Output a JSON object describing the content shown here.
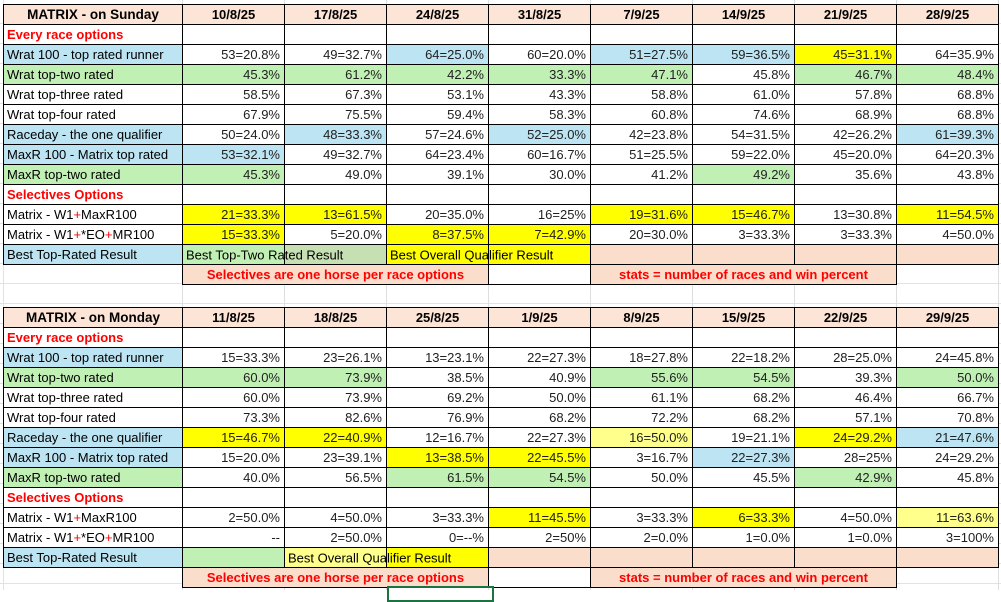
{
  "colors": {
    "salmon_header": "#FCE4D6",
    "salmon_band": "#FADDCB",
    "red_text": "#FF0000",
    "selection_border": "#1B7340",
    "grid_line": "#E0E0E0",
    "cell_bg": {
      "w": "#FFFFFF",
      "b": "#BDE4F2",
      "g": "#C1F0B4",
      "g2": "#C6E0B4",
      "y": "#FFFF00",
      "p": "#FFFF8C",
      "s": "#FADDCB"
    }
  },
  "tables": [
    {
      "title": "MATRIX - on Sunday",
      "dates": [
        "10/8/25",
        "17/8/25",
        "24/8/25",
        "31/8/25",
        "7/9/25",
        "14/9/25",
        "21/9/25",
        "28/9/25"
      ],
      "rows": [
        {
          "type": "section",
          "label": "Every race options"
        },
        {
          "type": "data",
          "label": "Wrat 100 - top rated runner",
          "label_bg": "b",
          "cells": [
            [
              "53=20.8%",
              "w"
            ],
            [
              "49=32.7%",
              "w"
            ],
            [
              "64=25.0%",
              "b"
            ],
            [
              "60=20.0%",
              "w"
            ],
            [
              "51=27.5%",
              "b"
            ],
            [
              "59=36.5%",
              "b"
            ],
            [
              "45=31.1%",
              "y"
            ],
            [
              "64=35.9%",
              "w"
            ]
          ]
        },
        {
          "type": "data",
          "label": "Wrat top-two rated",
          "label_bg": "g",
          "cells": [
            [
              "45.3%",
              "g"
            ],
            [
              "61.2%",
              "g"
            ],
            [
              "42.2%",
              "g"
            ],
            [
              "33.3%",
              "g"
            ],
            [
              "47.1%",
              "g"
            ],
            [
              "45.8%",
              "w"
            ],
            [
              "46.7%",
              "g"
            ],
            [
              "48.4%",
              "g"
            ]
          ]
        },
        {
          "type": "data",
          "label": "Wrat top-three rated",
          "label_bg": "w",
          "cells": [
            [
              "58.5%",
              "w"
            ],
            [
              "67.3%",
              "w"
            ],
            [
              "53.1%",
              "w"
            ],
            [
              "43.3%",
              "w"
            ],
            [
              "58.8%",
              "w"
            ],
            [
              "61.0%",
              "w"
            ],
            [
              "57.8%",
              "w"
            ],
            [
              "68.8%",
              "w"
            ]
          ]
        },
        {
          "type": "data",
          "label": "Wrat top-four rated",
          "label_bg": "w",
          "cells": [
            [
              "67.9%",
              "w"
            ],
            [
              "75.5%",
              "w"
            ],
            [
              "59.4%",
              "w"
            ],
            [
              "58.3%",
              "w"
            ],
            [
              "60.8%",
              "w"
            ],
            [
              "74.6%",
              "w"
            ],
            [
              "68.9%",
              "w"
            ],
            [
              "68.8%",
              "w"
            ]
          ]
        },
        {
          "type": "data",
          "label": "Raceday - the one qualifier",
          "label_bg": "b",
          "cells": [
            [
              "50=24.0%",
              "w"
            ],
            [
              "48=33.3%",
              "b"
            ],
            [
              "57=24.6%",
              "w"
            ],
            [
              "52=25.0%",
              "b"
            ],
            [
              "42=23.8%",
              "w"
            ],
            [
              "54=31.5%",
              "w"
            ],
            [
              "42=26.2%",
              "w"
            ],
            [
              "61=39.3%",
              "b"
            ]
          ]
        },
        {
          "type": "data",
          "label": "MaxR 100 - Matrix top rated",
          "label_bg": "b",
          "cells": [
            [
              "53=32.1%",
              "b"
            ],
            [
              "49=32.7%",
              "w"
            ],
            [
              "64=23.4%",
              "w"
            ],
            [
              "60=16.7%",
              "w"
            ],
            [
              "51=25.5%",
              "w"
            ],
            [
              "59=22.0%",
              "w"
            ],
            [
              "45=20.0%",
              "w"
            ],
            [
              "64=20.3%",
              "w"
            ]
          ]
        },
        {
          "type": "data",
          "label": "MaxR top-two rated",
          "label_bg": "g",
          "cells": [
            [
              "45.3%",
              "g"
            ],
            [
              "49.0%",
              "w"
            ],
            [
              "39.1%",
              "w"
            ],
            [
              "30.0%",
              "w"
            ],
            [
              "41.2%",
              "w"
            ],
            [
              "49.2%",
              "g"
            ],
            [
              "35.6%",
              "w"
            ],
            [
              "43.8%",
              "w"
            ]
          ]
        },
        {
          "type": "section",
          "label": "Selectives Options"
        },
        {
          "type": "data",
          "label": [
            {
              "t": "Matrix - W1"
            },
            {
              "t": "+",
              "red": true
            },
            {
              "t": "MaxR100"
            }
          ],
          "label_bg": "w",
          "cells": [
            [
              "21=33.3%",
              "y"
            ],
            [
              "13=61.5%",
              "y"
            ],
            [
              "20=35.0%",
              "w"
            ],
            [
              "16=25%",
              "w"
            ],
            [
              "19=31.6%",
              "y"
            ],
            [
              "15=46.7%",
              "y"
            ],
            [
              "13=30.8%",
              "w"
            ],
            [
              "11=54.5%",
              "y"
            ]
          ]
        },
        {
          "type": "data",
          "label": [
            {
              "t": "Matrix - W1"
            },
            {
              "t": "+",
              "red": true
            },
            {
              "t": "*EO"
            },
            {
              "t": "+",
              "red": true
            },
            {
              "t": "MR100"
            }
          ],
          "label_bg": "w",
          "cells": [
            [
              "15=33.3%",
              "y"
            ],
            [
              "5=20.0%",
              "w"
            ],
            [
              "8=37.5%",
              "y"
            ],
            [
              "7=42.9%",
              "y"
            ],
            [
              "20=30.0%",
              "w"
            ],
            [
              "3=33.3%",
              "w"
            ],
            [
              "3=33.3%",
              "w"
            ],
            [
              "4=50.0%",
              "w"
            ]
          ]
        },
        {
          "type": "best",
          "label": "Best Top-Rated Result",
          "label_bg": "b",
          "cells": [
            {
              "bg": "g",
              "text": "Best Top-Two Rated Result"
            },
            {
              "bg": "g2"
            },
            {
              "bg": "y",
              "text": "Best Overall Qualifier Result"
            },
            {
              "bg": "y"
            },
            {
              "bg": "s"
            },
            {
              "bg": "s"
            },
            {
              "bg": "s"
            },
            {
              "bg": "s"
            }
          ]
        },
        {
          "type": "band",
          "left": "Selectives are one horse per race options",
          "right": "stats = number of races and win percent"
        }
      ]
    },
    {
      "title": "MATRIX - on Monday",
      "dates": [
        "11/8/25",
        "18/8/25",
        "25/8/25",
        "1/9/25",
        "8/9/25",
        "15/9/25",
        "22/9/25",
        "29/9/25"
      ],
      "rows": [
        {
          "type": "section",
          "label": "Every race options"
        },
        {
          "type": "data",
          "label": "Wrat 100 - top rated runner",
          "label_bg": "b",
          "cells": [
            [
              "15=33.3%",
              "w"
            ],
            [
              "23=26.1%",
              "w"
            ],
            [
              "13=23.1%",
              "w"
            ],
            [
              "22=27.3%",
              "w"
            ],
            [
              "18=27.8%",
              "w"
            ],
            [
              "22=18.2%",
              "w"
            ],
            [
              "28=25.0%",
              "w"
            ],
            [
              "24=45.8%",
              "w"
            ]
          ]
        },
        {
          "type": "data",
          "label": "Wrat top-two rated",
          "label_bg": "g",
          "cells": [
            [
              "60.0%",
              "g"
            ],
            [
              "73.9%",
              "g"
            ],
            [
              "38.5%",
              "w"
            ],
            [
              "40.9%",
              "w"
            ],
            [
              "55.6%",
              "g"
            ],
            [
              "54.5%",
              "g"
            ],
            [
              "39.3%",
              "w"
            ],
            [
              "50.0%",
              "g"
            ]
          ]
        },
        {
          "type": "data",
          "label": "Wrat top-three rated",
          "label_bg": "w",
          "cells": [
            [
              "60.0%",
              "w"
            ],
            [
              "73.9%",
              "w"
            ],
            [
              "69.2%",
              "w"
            ],
            [
              "50.0%",
              "w"
            ],
            [
              "61.1%",
              "w"
            ],
            [
              "68.2%",
              "w"
            ],
            [
              "46.4%",
              "w"
            ],
            [
              "66.7%",
              "w"
            ]
          ]
        },
        {
          "type": "data",
          "label": "Wrat top-four rated",
          "label_bg": "w",
          "cells": [
            [
              "73.3%",
              "w"
            ],
            [
              "82.6%",
              "w"
            ],
            [
              "76.9%",
              "w"
            ],
            [
              "68.2%",
              "w"
            ],
            [
              "72.2%",
              "w"
            ],
            [
              "68.2%",
              "w"
            ],
            [
              "57.1%",
              "w"
            ],
            [
              "70.8%",
              "w"
            ]
          ]
        },
        {
          "type": "data",
          "label": "Raceday - the one qualifier",
          "label_bg": "b",
          "cells": [
            [
              "15=46.7%",
              "y"
            ],
            [
              "22=40.9%",
              "y"
            ],
            [
              "12=16.7%",
              "w"
            ],
            [
              "22=27.3%",
              "w"
            ],
            [
              "16=50.0%",
              "p"
            ],
            [
              "19=21.1%",
              "w"
            ],
            [
              "24=29.2%",
              "y"
            ],
            [
              "21=47.6%",
              "b"
            ]
          ]
        },
        {
          "type": "data",
          "label": "MaxR 100 - Matrix top rated",
          "label_bg": "b",
          "cells": [
            [
              "15=20.0%",
              "w"
            ],
            [
              "23=39.1%",
              "w"
            ],
            [
              "13=38.5%",
              "y"
            ],
            [
              "22=45.5%",
              "y"
            ],
            [
              "3=16.7%",
              "w"
            ],
            [
              "22=27.3%",
              "b"
            ],
            [
              "28=25%",
              "w"
            ],
            [
              "24=29.2%",
              "w"
            ]
          ]
        },
        {
          "type": "data",
          "label": "MaxR top-two rated",
          "label_bg": "g",
          "cells": [
            [
              "40.0%",
              "w"
            ],
            [
              "56.5%",
              "w"
            ],
            [
              "61.5%",
              "g"
            ],
            [
              "54.5%",
              "g"
            ],
            [
              "50.0%",
              "w"
            ],
            [
              "45.5%",
              "w"
            ],
            [
              "42.9%",
              "g"
            ],
            [
              "45.8%",
              "w"
            ]
          ]
        },
        {
          "type": "section",
          "label": "Selectives Options"
        },
        {
          "type": "data",
          "label": [
            {
              "t": "Matrix - W1"
            },
            {
              "t": "+",
              "red": true
            },
            {
              "t": "MaxR100"
            }
          ],
          "label_bg": "w",
          "cells": [
            [
              "2=50.0%",
              "w"
            ],
            [
              "4=50.0%",
              "w"
            ],
            [
              "3=33.3%",
              "w"
            ],
            [
              "11=45.5%",
              "y"
            ],
            [
              "3=33.3%",
              "w"
            ],
            [
              "6=33.3%",
              "y"
            ],
            [
              "4=50.0%",
              "w"
            ],
            [
              "11=63.6%",
              "p"
            ]
          ]
        },
        {
          "type": "data",
          "label": [
            {
              "t": "Matrix - W1"
            },
            {
              "t": "+",
              "red": true
            },
            {
              "t": "*EO"
            },
            {
              "t": "+",
              "red": true
            },
            {
              "t": "MR100"
            }
          ],
          "label_bg": "w",
          "cells": [
            [
              "--",
              "w"
            ],
            [
              "2=50.0%",
              "w"
            ],
            [
              "0=--%",
              "w"
            ],
            [
              "2=50%",
              "w"
            ],
            [
              "2=0.0%",
              "w"
            ],
            [
              "1=0.0%",
              "w"
            ],
            [
              "1=0.0%",
              "w"
            ],
            [
              "3=100%",
              "w"
            ]
          ]
        },
        {
          "type": "best",
          "label": "Best Top-Rated Result",
          "label_bg": "b",
          "cells": [
            {
              "bg": "g"
            },
            {
              "bg": "p",
              "text": "Best Overall Qualifier Result"
            },
            {
              "bg": "y"
            },
            {
              "bg": "s"
            },
            {
              "bg": "s"
            },
            {
              "bg": "s"
            },
            {
              "bg": "s"
            },
            {
              "bg": "s"
            }
          ]
        },
        {
          "type": "band",
          "left": "Selectives are one horse per race options",
          "right": "stats = number of races and win percent"
        }
      ]
    }
  ]
}
